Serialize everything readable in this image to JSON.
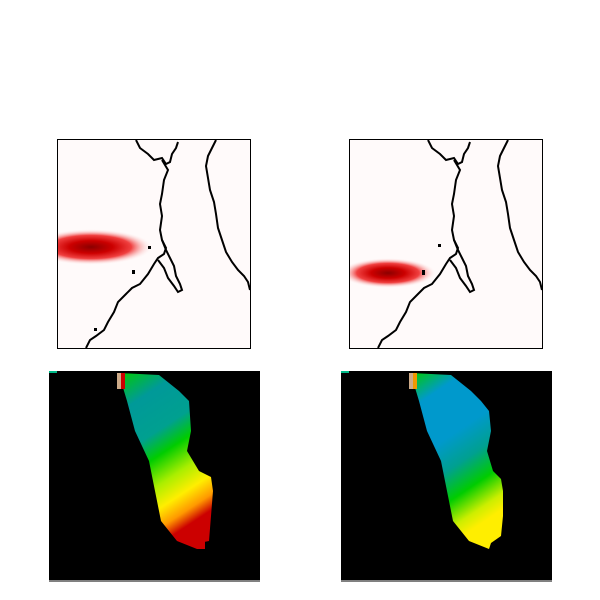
{
  "figure": {
    "panels": [
      {
        "name": "map-left",
        "kind": "intensity-map"
      },
      {
        "name": "map-right",
        "kind": "intensity-map"
      },
      {
        "name": "field-left",
        "kind": "color-field"
      },
      {
        "name": "field-right",
        "kind": "color-field"
      }
    ],
    "colors": {
      "background": "#ffffff",
      "map_background": "#fffafa",
      "blob_core": "#8b0000",
      "blob_mid": "#e00000",
      "blob_edge": "#ffd0d0",
      "coastline": "#000000",
      "field_background": "#000000",
      "field_teal": "#009999",
      "field_blue": "#0099cc",
      "field_green": "#00cc00",
      "field_yellow": "#ffff00",
      "field_orange": "#ff9900",
      "field_red": "#cc0000"
    }
  }
}
